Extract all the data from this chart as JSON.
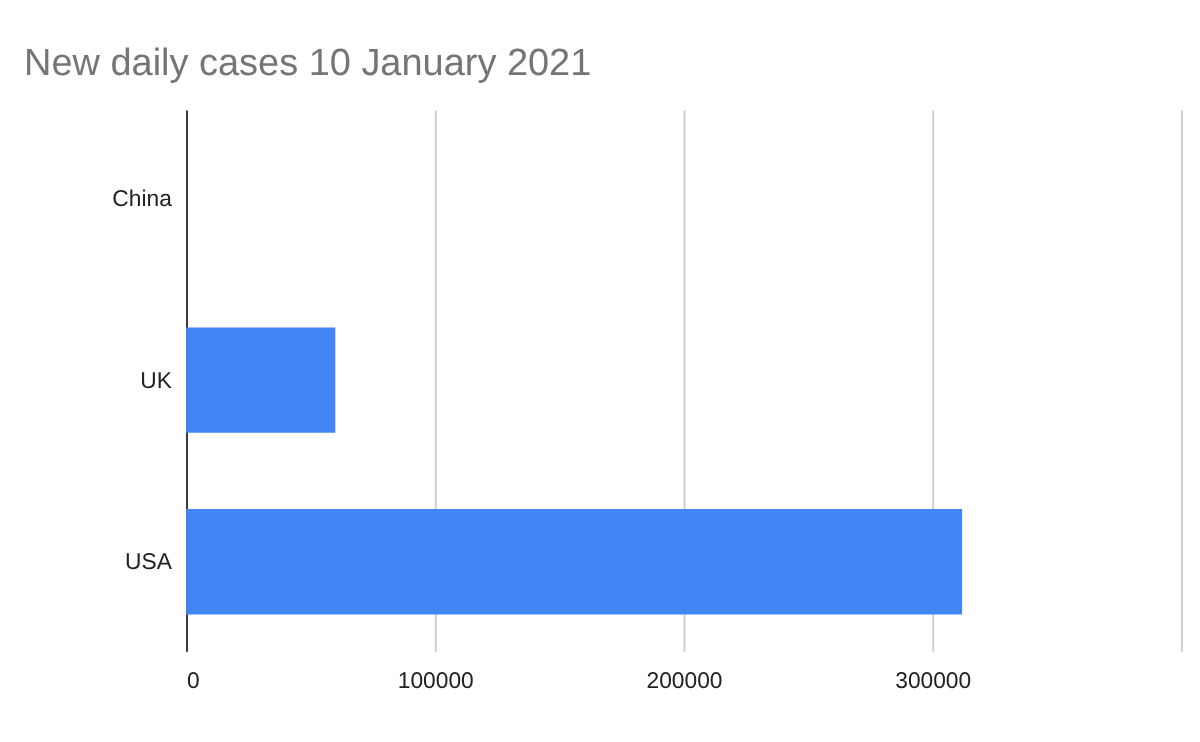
{
  "chart_data": {
    "type": "bar",
    "orientation": "horizontal",
    "title": "New daily cases 10 January 2021",
    "categories": [
      "China",
      "UK",
      "USA"
    ],
    "values": [
      0,
      60000,
      312000
    ],
    "color": "#4285f4",
    "xlim": [
      0,
      400000
    ],
    "xticks": [
      0,
      100000,
      200000,
      300000,
      {
        "value": 400000,
        "label": null
      }
    ],
    "grid": "x"
  }
}
